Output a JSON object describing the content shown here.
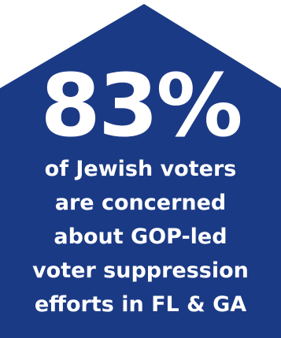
{
  "graphic": {
    "background_color": "#ffffff",
    "shape_color": "#1b3a85",
    "text_color": "#ffffff",
    "stat": "83%",
    "caption_lines": [
      "of Jewish voters",
      "are concerned",
      "about GOP-led",
      "voter suppression",
      "efforts in FL & GA"
    ]
  }
}
